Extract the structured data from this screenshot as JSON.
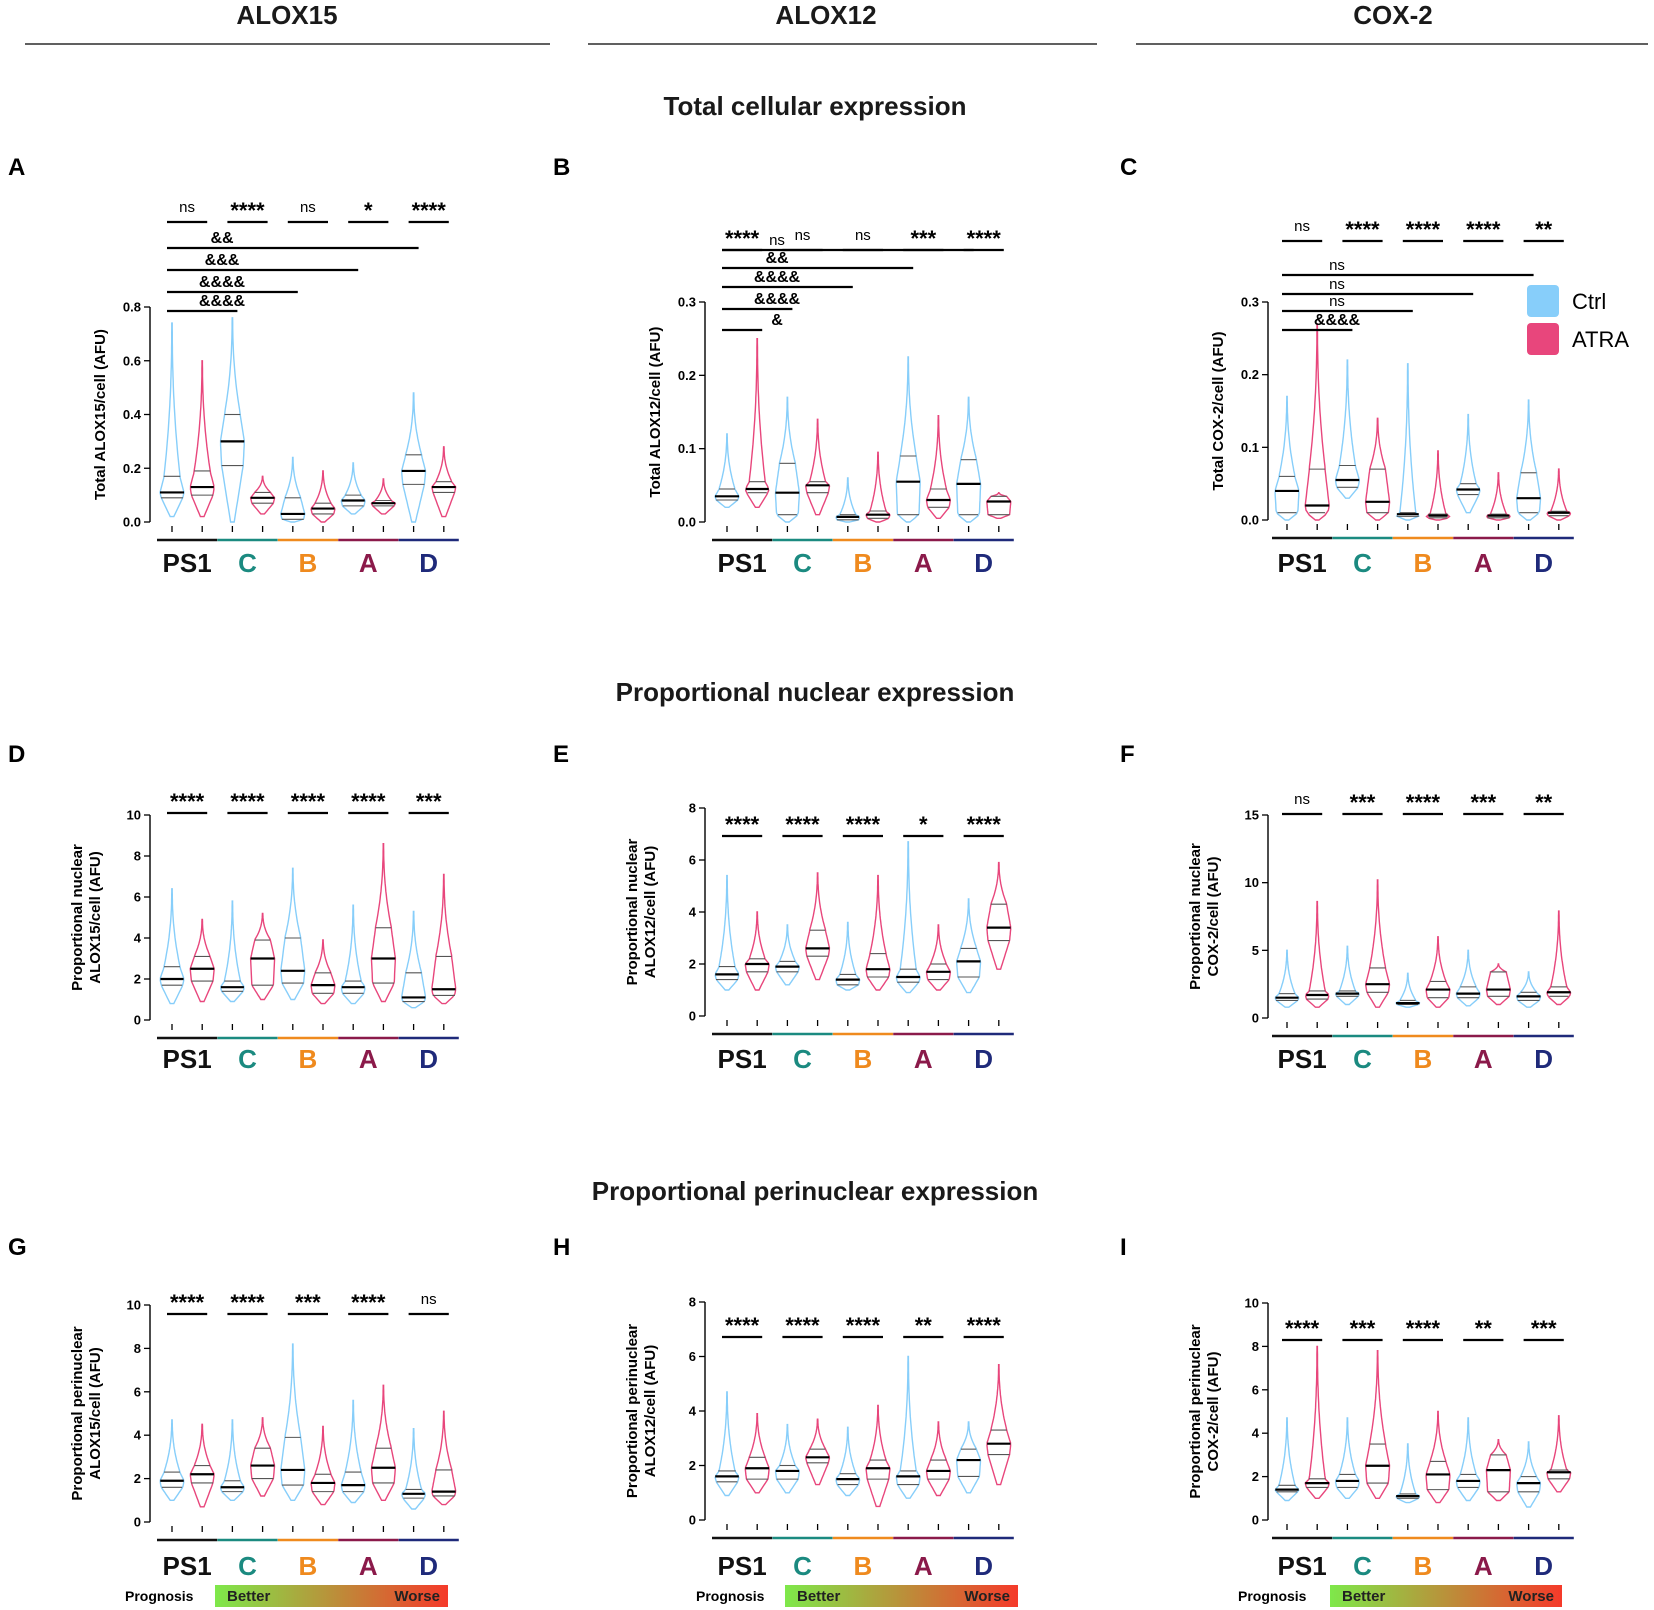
{
  "columns": [
    "ALOX15",
    "ALOX12",
    "COX-2"
  ],
  "sections": [
    "Total cellular expression",
    "Proportional nuclear expression",
    "Proportional perinuclear expression"
  ],
  "legend": {
    "items": [
      {
        "label": "Ctrl",
        "color": "#87cefa"
      },
      {
        "label": "ATRA",
        "color": "#e8467c"
      }
    ]
  },
  "colors": {
    "ctrl": "#87cefa",
    "atra": "#e8467c",
    "median": "#000000",
    "quartile": "#555555"
  },
  "groups": [
    {
      "label": "PS1",
      "color": "#111111"
    },
    {
      "label": "C",
      "color": "#1b8a80"
    },
    {
      "label": "B",
      "color": "#ef8a1e"
    },
    {
      "label": "A",
      "color": "#8b1a4a"
    },
    {
      "label": "D",
      "color": "#1f2a7a"
    }
  ],
  "prognosis": {
    "label": "Prognosis",
    "better": "Better",
    "worse": "Worse",
    "color_start": "#7ee84a",
    "color_end": "#f53a2a"
  },
  "chart_data": [
    {
      "id": "A",
      "type": "violin",
      "ylabel": "Total ALOX15/cell (AFU)",
      "ylim": [
        0,
        0.8
      ],
      "yticks": [
        "0.0",
        "0.2",
        "0.4",
        "0.6",
        "0.8"
      ],
      "ytick_values": [
        0,
        0.2,
        0.4,
        0.6,
        0.8
      ],
      "series": [
        {
          "name": "Ctrl",
          "stats": [
            [
              0.02,
              0.09,
              0.11,
              0.17,
              0.74
            ],
            [
              0.0,
              0.21,
              0.3,
              0.4,
              0.76
            ],
            [
              0.0,
              0.01,
              0.03,
              0.09,
              0.24
            ],
            [
              0.03,
              0.06,
              0.08,
              0.1,
              0.22
            ],
            [
              0.0,
              0.14,
              0.19,
              0.25,
              0.48
            ]
          ]
        },
        {
          "name": "ATRA",
          "stats": [
            [
              0.02,
              0.1,
              0.13,
              0.19,
              0.6
            ],
            [
              0.03,
              0.07,
              0.09,
              0.11,
              0.17
            ],
            [
              0.0,
              0.03,
              0.05,
              0.07,
              0.19
            ],
            [
              0.03,
              0.06,
              0.07,
              0.08,
              0.16
            ],
            [
              0.02,
              0.11,
              0.13,
              0.15,
              0.28
            ]
          ]
        }
      ],
      "pairwise": [
        "ns",
        "****",
        "ns",
        "*",
        "****"
      ],
      "vs_ps1": [
        {
          "target": "C",
          "label": "&&&&"
        },
        {
          "target": "B",
          "label": "&&&&"
        },
        {
          "target": "A",
          "label": "&&&"
        },
        {
          "target": "D",
          "label": "&&"
        }
      ]
    },
    {
      "id": "B",
      "type": "violin",
      "ylabel": "Total ALOX12/cell (AFU)",
      "ylim": [
        0,
        0.3
      ],
      "yticks": [
        "0.0",
        "0.1",
        "0.2",
        "0.3"
      ],
      "ytick_values": [
        0,
        0.1,
        0.2,
        0.3
      ],
      "series": [
        {
          "name": "Ctrl",
          "stats": [
            [
              0.02,
              0.03,
              0.035,
              0.045,
              0.12
            ],
            [
              0.0,
              0.01,
              0.04,
              0.08,
              0.17
            ],
            [
              0.0,
              0.003,
              0.007,
              0.01,
              0.06
            ],
            [
              0.0,
              0.01,
              0.055,
              0.09,
              0.225
            ],
            [
              0.0,
              0.01,
              0.052,
              0.085,
              0.17
            ]
          ]
        },
        {
          "name": "ATRA",
          "stats": [
            [
              0.02,
              0.04,
              0.045,
              0.055,
              0.25
            ],
            [
              0.01,
              0.04,
              0.05,
              0.055,
              0.14
            ],
            [
              0.0,
              0.005,
              0.01,
              0.015,
              0.095
            ],
            [
              0.005,
              0.02,
              0.03,
              0.045,
              0.145
            ],
            [
              0.005,
              0.01,
              0.028,
              0.035,
              0.04
            ]
          ]
        }
      ],
      "pairwise": [
        "****",
        "ns",
        "ns",
        "***",
        "****"
      ],
      "vs_ps1": [
        {
          "target": "PS1 ATRA",
          "label": "&"
        },
        {
          "target": "C",
          "label": "&&&&"
        },
        {
          "target": "B",
          "label": "&&&&"
        },
        {
          "target": "A",
          "label": "&&"
        },
        {
          "target": "D",
          "label": "ns"
        }
      ]
    },
    {
      "id": "C",
      "type": "violin",
      "ylabel": "Total COX-2/cell (AFU)",
      "ylim": [
        0,
        0.3
      ],
      "yticks": [
        "0.0",
        "0.1",
        "0.2",
        "0.3"
      ],
      "ytick_values": [
        0,
        0.1,
        0.2,
        0.3
      ],
      "series": [
        {
          "name": "Ctrl",
          "stats": [
            [
              0.0,
              0.01,
              0.04,
              0.06,
              0.17
            ],
            [
              0.03,
              0.045,
              0.055,
              0.075,
              0.22
            ],
            [
              0.0,
              0.005,
              0.008,
              0.01,
              0.215
            ],
            [
              0.01,
              0.035,
              0.042,
              0.05,
              0.145
            ],
            [
              0.0,
              0.01,
              0.03,
              0.065,
              0.165
            ]
          ]
        },
        {
          "name": "ATRA",
          "stats": [
            [
              0.0,
              0.01,
              0.02,
              0.07,
              0.27
            ],
            [
              0.0,
              0.01,
              0.025,
              0.07,
              0.14
            ],
            [
              0.0,
              0.003,
              0.006,
              0.008,
              0.095
            ],
            [
              0.0,
              0.003,
              0.006,
              0.008,
              0.065
            ],
            [
              0.0,
              0.006,
              0.01,
              0.012,
              0.07
            ]
          ]
        }
      ],
      "pairwise": [
        "ns",
        "****",
        "****",
        "****",
        "**"
      ],
      "vs_ps1": [
        {
          "target": "C",
          "label": "&&&&"
        },
        {
          "target": "B",
          "label": "ns"
        },
        {
          "target": "A",
          "label": "ns"
        },
        {
          "target": "D",
          "label": "ns"
        }
      ]
    },
    {
      "id": "D",
      "type": "violin",
      "ylabel": "Proportional nuclear ALOX15/cell (AFU)",
      "ylim": [
        0,
        10
      ],
      "yticks": [
        "0",
        "2",
        "4",
        "6",
        "8",
        "10"
      ],
      "ytick_values": [
        0,
        2,
        4,
        6,
        8,
        10
      ],
      "series": [
        {
          "name": "Ctrl",
          "stats": [
            [
              0.8,
              1.7,
              2.0,
              2.6,
              6.4
            ],
            [
              0.9,
              1.4,
              1.6,
              1.9,
              5.8
            ],
            [
              1.0,
              1.8,
              2.4,
              4.0,
              7.4
            ],
            [
              0.8,
              1.3,
              1.6,
              1.9,
              5.6
            ],
            [
              0.6,
              0.9,
              1.1,
              2.3,
              5.3
            ]
          ]
        },
        {
          "name": "ATRA",
          "stats": [
            [
              0.9,
              1.9,
              2.5,
              3.1,
              4.9
            ],
            [
              1.0,
              1.7,
              3.0,
              3.9,
              5.2
            ],
            [
              0.8,
              1.3,
              1.7,
              2.3,
              3.9
            ],
            [
              0.9,
              1.8,
              3.0,
              4.5,
              8.6
            ],
            [
              0.8,
              1.2,
              1.5,
              3.1,
              7.1
            ]
          ]
        }
      ],
      "pairwise": [
        "****",
        "****",
        "****",
        "****",
        "***"
      ]
    },
    {
      "id": "E",
      "type": "violin",
      "ylabel": "Proportional nuclear ALOX12/cell (AFU)",
      "ylim": [
        0,
        8
      ],
      "yticks": [
        "0",
        "2",
        "4",
        "6",
        "8"
      ],
      "ytick_values": [
        0,
        2,
        4,
        6,
        8
      ],
      "series": [
        {
          "name": "Ctrl",
          "stats": [
            [
              1.0,
              1.4,
              1.6,
              1.9,
              5.4
            ],
            [
              1.2,
              1.7,
              1.9,
              2.1,
              3.5
            ],
            [
              1.0,
              1.2,
              1.4,
              1.6,
              3.6
            ],
            [
              0.9,
              1.3,
              1.5,
              1.8,
              6.7
            ],
            [
              0.9,
              1.5,
              2.1,
              2.6,
              4.5
            ]
          ]
        },
        {
          "name": "ATRA",
          "stats": [
            [
              1.0,
              1.7,
              2.0,
              2.2,
              4.0
            ],
            [
              1.4,
              2.3,
              2.6,
              3.3,
              5.5
            ],
            [
              1.0,
              1.5,
              1.8,
              2.4,
              5.4
            ],
            [
              1.0,
              1.4,
              1.7,
              2.0,
              3.5
            ],
            [
              1.8,
              2.9,
              3.4,
              4.3,
              5.9
            ]
          ]
        }
      ],
      "pairwise": [
        "****",
        "****",
        "****",
        "*",
        "****"
      ]
    },
    {
      "id": "F",
      "type": "violin",
      "ylabel": "Proportional nuclear COX-2/cell (AFU)",
      "ylim": [
        0,
        15
      ],
      "yticks": [
        "0",
        "5",
        "10",
        "15"
      ],
      "ytick_values": [
        0,
        5,
        10,
        15
      ],
      "series": [
        {
          "name": "Ctrl",
          "stats": [
            [
              0.8,
              1.3,
              1.5,
              1.8,
              5.0
            ],
            [
              1.0,
              1.6,
              1.8,
              2.0,
              5.3
            ],
            [
              0.8,
              1.0,
              1.1,
              1.3,
              3.3
            ],
            [
              0.9,
              1.5,
              1.8,
              2.3,
              5.0
            ],
            [
              0.8,
              1.3,
              1.6,
              1.9,
              3.4
            ]
          ]
        },
        {
          "name": "ATRA",
          "stats": [
            [
              0.8,
              1.4,
              1.7,
              2.0,
              8.6
            ],
            [
              0.8,
              1.9,
              2.5,
              3.7,
              10.2
            ],
            [
              0.8,
              1.5,
              2.1,
              2.7,
              6.0
            ],
            [
              1.0,
              1.6,
              2.1,
              3.4,
              4.0
            ],
            [
              1.0,
              1.6,
              1.9,
              2.3,
              7.9
            ]
          ]
        }
      ],
      "pairwise": [
        "ns",
        "***",
        "****",
        "***",
        "**"
      ]
    },
    {
      "id": "G",
      "type": "violin",
      "ylabel": "Proportional perinuclear ALOX15/cell (AFU)",
      "ylim": [
        0,
        10
      ],
      "yticks": [
        "0",
        "2",
        "4",
        "6",
        "8",
        "10"
      ],
      "ytick_values": [
        0,
        2,
        4,
        6,
        8,
        10
      ],
      "series": [
        {
          "name": "Ctrl",
          "stats": [
            [
              1.0,
              1.6,
              1.9,
              2.3,
              4.7
            ],
            [
              1.0,
              1.4,
              1.6,
              1.9,
              4.7
            ],
            [
              1.0,
              1.7,
              2.4,
              3.9,
              8.2
            ],
            [
              0.9,
              1.4,
              1.7,
              2.3,
              5.6
            ],
            [
              0.6,
              1.1,
              1.3,
              1.5,
              4.3
            ]
          ]
        },
        {
          "name": "ATRA",
          "stats": [
            [
              0.7,
              1.8,
              2.2,
              2.6,
              4.5
            ],
            [
              1.2,
              2.0,
              2.6,
              3.4,
              4.8
            ],
            [
              0.8,
              1.4,
              1.8,
              2.2,
              4.4
            ],
            [
              1.0,
              1.8,
              2.5,
              3.4,
              6.3
            ],
            [
              0.8,
              1.2,
              1.4,
              2.4,
              5.1
            ]
          ]
        }
      ],
      "pairwise": [
        "****",
        "****",
        "***",
        "****",
        "ns"
      ]
    },
    {
      "id": "H",
      "type": "violin",
      "ylabel": "Proportional perinuclear ALOX12/cell (AFU)",
      "ylim": [
        0,
        8
      ],
      "yticks": [
        "0",
        "2",
        "4",
        "6",
        "8"
      ],
      "ytick_values": [
        0,
        2,
        4,
        6,
        8
      ],
      "series": [
        {
          "name": "Ctrl",
          "stats": [
            [
              0.9,
              1.4,
              1.6,
              1.8,
              4.7
            ],
            [
              1.0,
              1.5,
              1.8,
              2.0,
              3.5
            ],
            [
              0.9,
              1.3,
              1.5,
              1.7,
              3.4
            ],
            [
              0.8,
              1.3,
              1.6,
              1.8,
              6.0
            ],
            [
              1.0,
              1.6,
              2.2,
              2.6,
              3.6
            ]
          ]
        },
        {
          "name": "ATRA",
          "stats": [
            [
              1.0,
              1.5,
              1.9,
              2.3,
              3.9
            ],
            [
              1.3,
              2.1,
              2.3,
              2.6,
              3.7
            ],
            [
              0.5,
              1.5,
              1.9,
              2.2,
              4.2
            ],
            [
              0.9,
              1.5,
              1.8,
              2.2,
              3.6
            ],
            [
              1.3,
              2.4,
              2.8,
              3.3,
              5.7
            ]
          ]
        }
      ],
      "pairwise": [
        "****",
        "****",
        "****",
        "**",
        "****"
      ]
    },
    {
      "id": "I",
      "type": "violin",
      "ylabel": "Proportional perinuclear COX-2/cell (AFU)",
      "ylim": [
        0,
        10
      ],
      "yticks": [
        "0",
        "2",
        "4",
        "6",
        "8",
        "10"
      ],
      "ytick_values": [
        0,
        2,
        4,
        6,
        8,
        10
      ],
      "series": [
        {
          "name": "Ctrl",
          "stats": [
            [
              0.9,
              1.3,
              1.4,
              1.6,
              4.7
            ],
            [
              1.0,
              1.5,
              1.8,
              2.1,
              4.7
            ],
            [
              0.8,
              1.0,
              1.1,
              1.2,
              3.5
            ],
            [
              0.9,
              1.5,
              1.8,
              2.1,
              4.7
            ],
            [
              0.6,
              1.3,
              1.7,
              2.0,
              3.6
            ]
          ]
        },
        {
          "name": "ATRA",
          "stats": [
            [
              1.0,
              1.5,
              1.7,
              1.9,
              8.0
            ],
            [
              1.0,
              1.7,
              2.5,
              3.5,
              7.8
            ],
            [
              0.8,
              1.4,
              2.1,
              2.7,
              5.0
            ],
            [
              0.9,
              1.3,
              2.3,
              3.0,
              3.7
            ],
            [
              1.3,
              1.9,
              2.2,
              2.3,
              4.8
            ]
          ]
        }
      ],
      "pairwise": [
        "****",
        "***",
        "****",
        "**",
        "***"
      ]
    }
  ]
}
